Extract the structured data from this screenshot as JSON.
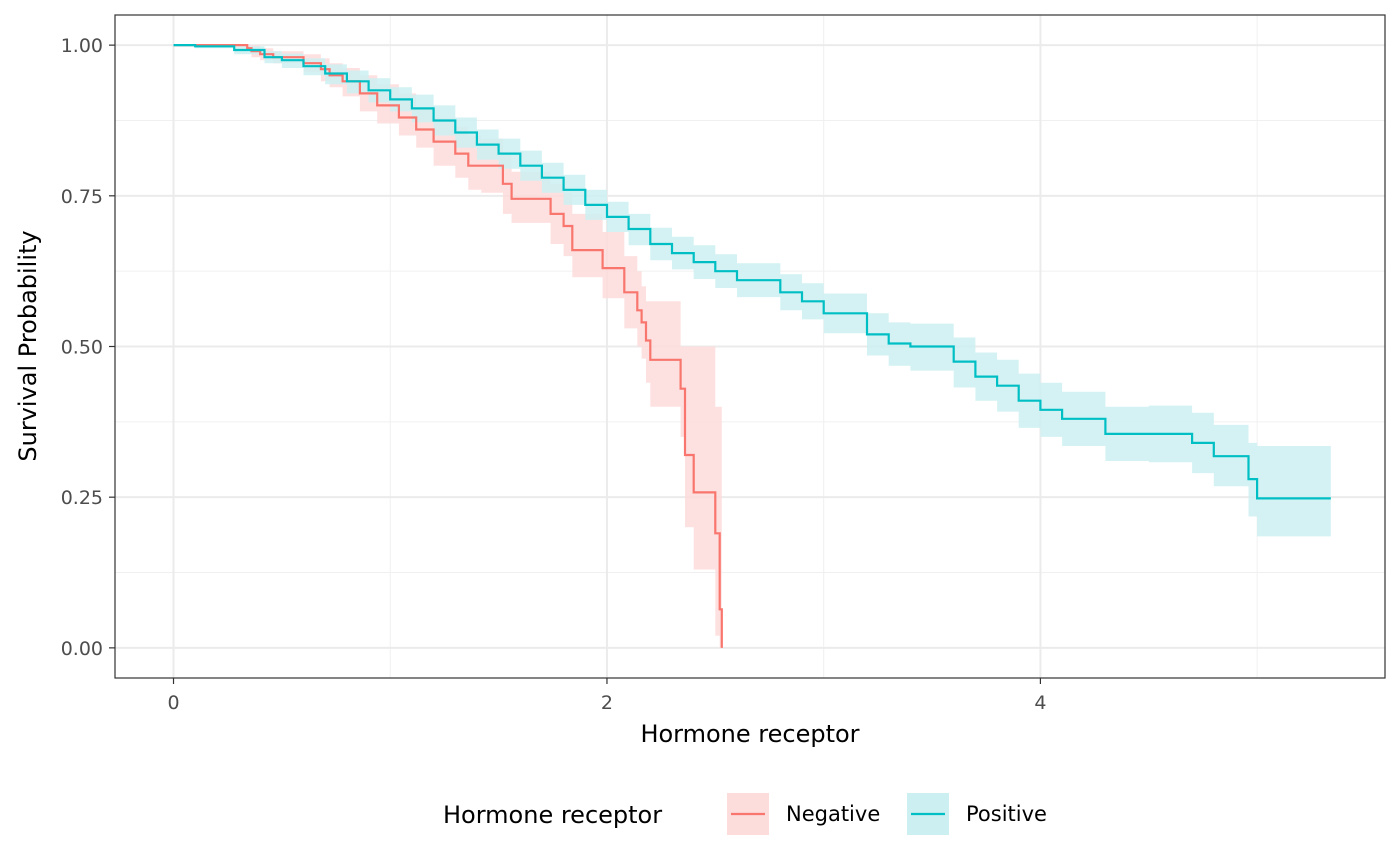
{
  "chart_data": {
    "type": "line",
    "step": true,
    "xlabel": "Hormone receptor",
    "ylabel": "Survival Probability",
    "xlim": [
      -0.27,
      5.59
    ],
    "ylim": [
      -0.05,
      1.05
    ],
    "x_ticks": [
      0,
      2,
      4
    ],
    "x_tick_labels": [
      "0",
      "2",
      "4"
    ],
    "y_ticks": [
      0,
      0.25,
      0.5,
      0.75,
      1.0
    ],
    "y_tick_labels": [
      "0.00",
      "0.25",
      "0.50",
      "0.75",
      "1.00"
    ],
    "grid": true,
    "legend": {
      "title": "Hormone receptor",
      "position": "bottom"
    },
    "series": [
      {
        "name": "Negative",
        "color": "#F8766D",
        "fill": "#FDDCDC",
        "x": [
          0,
          0.34,
          0.36,
          0.4,
          0.46,
          0.6,
          0.68,
          0.72,
          0.78,
          0.86,
          0.94,
          1.04,
          1.12,
          1.2,
          1.3,
          1.36,
          1.42,
          1.52,
          1.56,
          1.64,
          1.74,
          1.8,
          1.84,
          1.98,
          2.02,
          2.08,
          2.14,
          2.16,
          2.18,
          2.2,
          2.34,
          2.36,
          2.4,
          2.5,
          2.52,
          2.53
        ],
        "y": [
          1.0,
          0.995,
          0.99,
          0.985,
          0.98,
          0.97,
          0.96,
          0.95,
          0.94,
          0.92,
          0.9,
          0.88,
          0.86,
          0.84,
          0.82,
          0.8,
          0.8,
          0.77,
          0.745,
          0.745,
          0.72,
          0.7,
          0.66,
          0.63,
          0.63,
          0.59,
          0.56,
          0.54,
          0.51,
          0.478,
          0.43,
          0.32,
          0.258,
          0.19,
          0.064,
          0.0
        ],
        "lower": [
          1.0,
          0.99,
          0.98,
          0.975,
          0.97,
          0.955,
          0.94,
          0.93,
          0.915,
          0.89,
          0.87,
          0.85,
          0.83,
          0.8,
          0.78,
          0.76,
          0.755,
          0.72,
          0.705,
          0.705,
          0.67,
          0.65,
          0.615,
          0.58,
          0.58,
          0.53,
          0.5,
          0.48,
          0.44,
          0.4,
          0.35,
          0.2,
          0.13,
          0.02,
          0.0,
          0.0
        ],
        "upper": [
          1.0,
          1.0,
          1.0,
          0.995,
          0.99,
          0.985,
          0.978,
          0.97,
          0.962,
          0.95,
          0.935,
          0.92,
          0.895,
          0.88,
          0.865,
          0.85,
          0.845,
          0.82,
          0.79,
          0.79,
          0.77,
          0.755,
          0.72,
          0.69,
          0.69,
          0.65,
          0.625,
          0.6,
          0.575,
          0.575,
          0.5,
          0.5,
          0.5,
          0.4,
          0.4,
          0.4
        ]
      },
      {
        "name": "Positive",
        "color": "#00BFC4",
        "fill": "#CCF0F2",
        "x": [
          0,
          0.1,
          0.28,
          0.42,
          0.5,
          0.6,
          0.7,
          0.8,
          0.9,
          1.0,
          1.1,
          1.2,
          1.3,
          1.4,
          1.5,
          1.6,
          1.7,
          1.8,
          1.9,
          2.0,
          2.1,
          2.2,
          2.3,
          2.4,
          2.5,
          2.6,
          2.8,
          2.9,
          3.0,
          3.2,
          3.3,
          3.4,
          3.6,
          3.7,
          3.8,
          3.9,
          4.0,
          4.1,
          4.3,
          4.5,
          4.7,
          4.8,
          4.96,
          5.0,
          5.34
        ],
        "y": [
          1.0,
          0.998,
          0.992,
          0.98,
          0.975,
          0.965,
          0.953,
          0.94,
          0.925,
          0.91,
          0.895,
          0.875,
          0.855,
          0.835,
          0.82,
          0.8,
          0.78,
          0.76,
          0.735,
          0.715,
          0.695,
          0.67,
          0.655,
          0.64,
          0.625,
          0.61,
          0.59,
          0.575,
          0.555,
          0.52,
          0.505,
          0.5,
          0.475,
          0.45,
          0.435,
          0.41,
          0.395,
          0.38,
          0.355,
          0.355,
          0.34,
          0.318,
          0.28,
          0.248,
          0.248
        ],
        "lower": [
          1.0,
          0.995,
          0.985,
          0.97,
          0.962,
          0.95,
          0.935,
          0.92,
          0.905,
          0.89,
          0.872,
          0.85,
          0.83,
          0.81,
          0.795,
          0.775,
          0.755,
          0.735,
          0.71,
          0.69,
          0.668,
          0.643,
          0.628,
          0.612,
          0.597,
          0.582,
          0.56,
          0.545,
          0.522,
          0.485,
          0.468,
          0.46,
          0.432,
          0.41,
          0.392,
          0.365,
          0.35,
          0.335,
          0.31,
          0.308,
          0.29,
          0.268,
          0.218,
          0.185,
          0.185
        ],
        "upper": [
          1.0,
          1.0,
          0.998,
          0.99,
          0.986,
          0.978,
          0.968,
          0.958,
          0.945,
          0.93,
          0.918,
          0.9,
          0.88,
          0.86,
          0.845,
          0.825,
          0.805,
          0.785,
          0.76,
          0.74,
          0.72,
          0.697,
          0.682,
          0.668,
          0.653,
          0.638,
          0.62,
          0.605,
          0.588,
          0.555,
          0.54,
          0.538,
          0.515,
          0.49,
          0.478,
          0.455,
          0.44,
          0.425,
          0.4,
          0.402,
          0.39,
          0.37,
          0.34,
          0.335,
          0.335
        ]
      }
    ]
  }
}
